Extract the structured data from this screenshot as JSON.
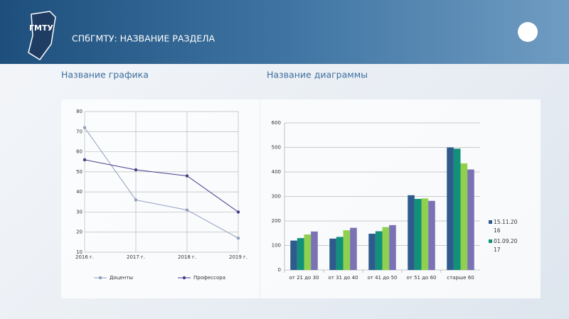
{
  "header": {
    "title": "СПбГМТУ: НАЗВАНИЕ РАЗДЕЛА"
  },
  "chart_data": [
    {
      "type": "line",
      "title": "Название графика",
      "categories": [
        "2016 г.",
        "2017 г.",
        "2018 г.",
        "2019 г."
      ],
      "series": [
        {
          "name": "Доценты",
          "color": "#8e9dbd",
          "values": [
            72,
            36,
            31,
            17
          ]
        },
        {
          "name": "Профессора",
          "color": "#4a3a8a",
          "values": [
            56,
            51,
            48,
            30
          ]
        }
      ],
      "ylim": [
        10,
        80
      ],
      "yticks": [
        10,
        20,
        30,
        40,
        50,
        60,
        70,
        80
      ],
      "grid": true,
      "legend": "bottom"
    },
    {
      "type": "bar",
      "title": "Название диаграммы",
      "categories": [
        "от 21 до 30",
        "от 31 до 40",
        "от 41 до 50",
        "от 51 до 60",
        "старше 60"
      ],
      "series": [
        {
          "name": "15.11.2016",
          "color": "#2e5b8c",
          "values": [
            120,
            128,
            148,
            305,
            500
          ]
        },
        {
          "name": "01.09.2017",
          "color": "#11907a",
          "values": [
            130,
            135,
            158,
            290,
            495
          ]
        },
        {
          "color": "#8fd14f",
          "values": [
            145,
            162,
            175,
            292,
            435
          ]
        },
        {
          "color": "#7a72b4",
          "values": [
            157,
            172,
            183,
            282,
            410
          ]
        }
      ],
      "ylim": [
        0,
        600
      ],
      "yticks": [
        0,
        100,
        200,
        300,
        400,
        500,
        600
      ],
      "grid": true,
      "legend": "right"
    }
  ]
}
